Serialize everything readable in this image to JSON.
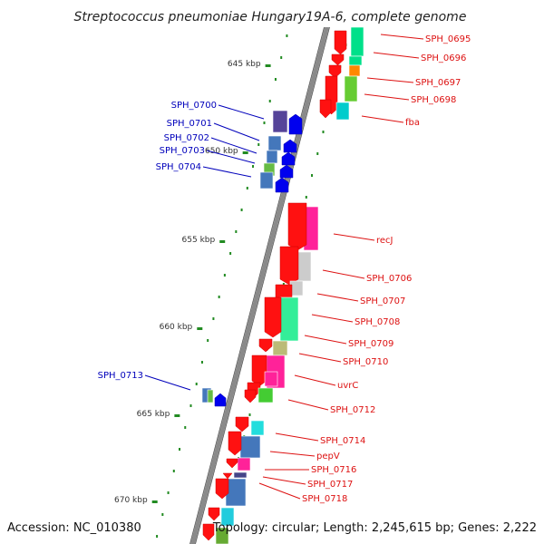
{
  "title": "Streptococcus pneumoniae Hungary19A-6, complete genome",
  "footer": {
    "accession": "Accession: NC_010380",
    "stats": "Topology: circular; Length: 2,245,615 bp; Genes: 2,222"
  },
  "colors": {
    "backbone": "#8a8a8a",
    "ticks": "#228b22",
    "forward_label": "#dd1111",
    "reverse_label": "#0000bb"
  },
  "ticks": [
    {
      "kbp": 645,
      "label": "645 kbp"
    },
    {
      "kbp": 650,
      "label": "650 kbp"
    },
    {
      "kbp": 655,
      "label": "655 kbp"
    },
    {
      "kbp": 660,
      "label": "660 kbp"
    },
    {
      "kbp": 665,
      "label": "665 kbp"
    },
    {
      "kbp": 670,
      "label": "670 kbp"
    }
  ],
  "forward_genes": [
    {
      "label": "SPH_0695",
      "color": "#00e08a"
    },
    {
      "label": "SPH_0696",
      "color": "#00e08a"
    },
    {
      "label": "SPH_0697",
      "color": "#ff8800"
    },
    {
      "label": "SPH_0698",
      "color": "#66cc33"
    },
    {
      "label": "fba",
      "color": "#00cccc"
    },
    {
      "label": "recJ",
      "color": "#ff2299"
    },
    {
      "label": "SPH_0706",
      "color": "#cccccc"
    },
    {
      "label": "SPH_0707",
      "color": "#cccccc"
    },
    {
      "label": "SPH_0708",
      "color": "#33ee99"
    },
    {
      "label": "SPH_0709",
      "color": "#bbbb77"
    },
    {
      "label": "SPH_0710",
      "color": "#ff2299"
    },
    {
      "label": "uvrC",
      "color": "#ff2299"
    },
    {
      "label": "SPH_0712",
      "color": "#44cc33"
    },
    {
      "label": "SPH_0714",
      "color": "#22dddd"
    },
    {
      "label": "pepV",
      "color": "#4477bb"
    },
    {
      "label": "SPH_0716",
      "color": "#ff2299"
    },
    {
      "label": "SPH_0717",
      "color": "#444488"
    },
    {
      "label": "SPH_0718",
      "color": "#4477bb"
    }
  ],
  "reverse_genes": [
    {
      "label": "SPH_0700",
      "color": "#554499"
    },
    {
      "label": "SPH_0701",
      "color": "#4477bb"
    },
    {
      "label": "SPH_0702",
      "color": "#4477bb"
    },
    {
      "label": "SPH_0703",
      "color": "#66bb44"
    },
    {
      "label": "SPH_0704",
      "color": "#4477bb"
    },
    {
      "label": "SPH_0713",
      "color": "#4477bb"
    }
  ]
}
